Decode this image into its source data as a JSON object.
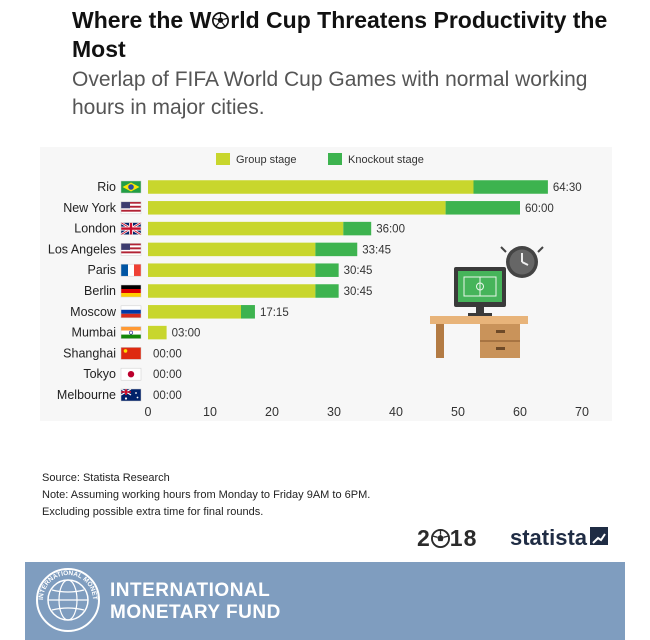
{
  "header": {
    "title_part1": "Where the W",
    "title_part2": "rld Cup Threatens Productivity the Most",
    "subtitle": "Overlap of FIFA World Cup Games with normal working hours in major cities."
  },
  "chart_data": {
    "type": "bar",
    "orientation": "horizontal",
    "stacked": true,
    "categories": [
      "Rio",
      "New York",
      "London",
      "Los Angeles",
      "Paris",
      "Berlin",
      "Moscow",
      "Mumbai",
      "Shanghai",
      "Tokyo",
      "Melbourne"
    ],
    "series": [
      {
        "name": "Group stage",
        "color": "#c8d62d",
        "values": [
          52.5,
          48.0,
          31.5,
          27.0,
          27.0,
          27.0,
          15.0,
          3.0,
          0,
          0,
          0
        ]
      },
      {
        "name": "Knockout stage",
        "color": "#3db34f",
        "values": [
          12.0,
          12.0,
          4.5,
          6.75,
          3.75,
          3.75,
          2.25,
          0,
          0,
          0,
          0
        ]
      }
    ],
    "data_labels": [
      "64:30",
      "60:00",
      "36:00",
      "33:45",
      "30:45",
      "30:45",
      "17:15",
      "03:00",
      "00:00",
      "00:00",
      "00:00"
    ],
    "flags": [
      "brazil",
      "usa",
      "uk",
      "usa",
      "france",
      "germany",
      "russia",
      "india",
      "china",
      "japan",
      "australia"
    ],
    "xticks": [
      "0",
      "10",
      "20",
      "30",
      "40",
      "50",
      "60",
      "70"
    ],
    "xlim": [
      0,
      70
    ],
    "legend": "top",
    "grid": false
  },
  "footer": {
    "source": "Source: Statista Research",
    "note1": "Note: Assuming working hours from Monday to Friday 9AM to 6PM.",
    "note2": "Excluding possible extra time for final rounds.",
    "year_part1": "2",
    "year_part2": "18",
    "statista": "statista"
  },
  "banner": {
    "line1": "INTERNATIONAL",
    "line2": "MONETARY FUND",
    "seal_text": "INTERNATIONAL MONETARY FUND"
  },
  "colors": {
    "group": "#c8d62d",
    "knockout": "#3db34f",
    "banner": "#7f9dbf"
  }
}
